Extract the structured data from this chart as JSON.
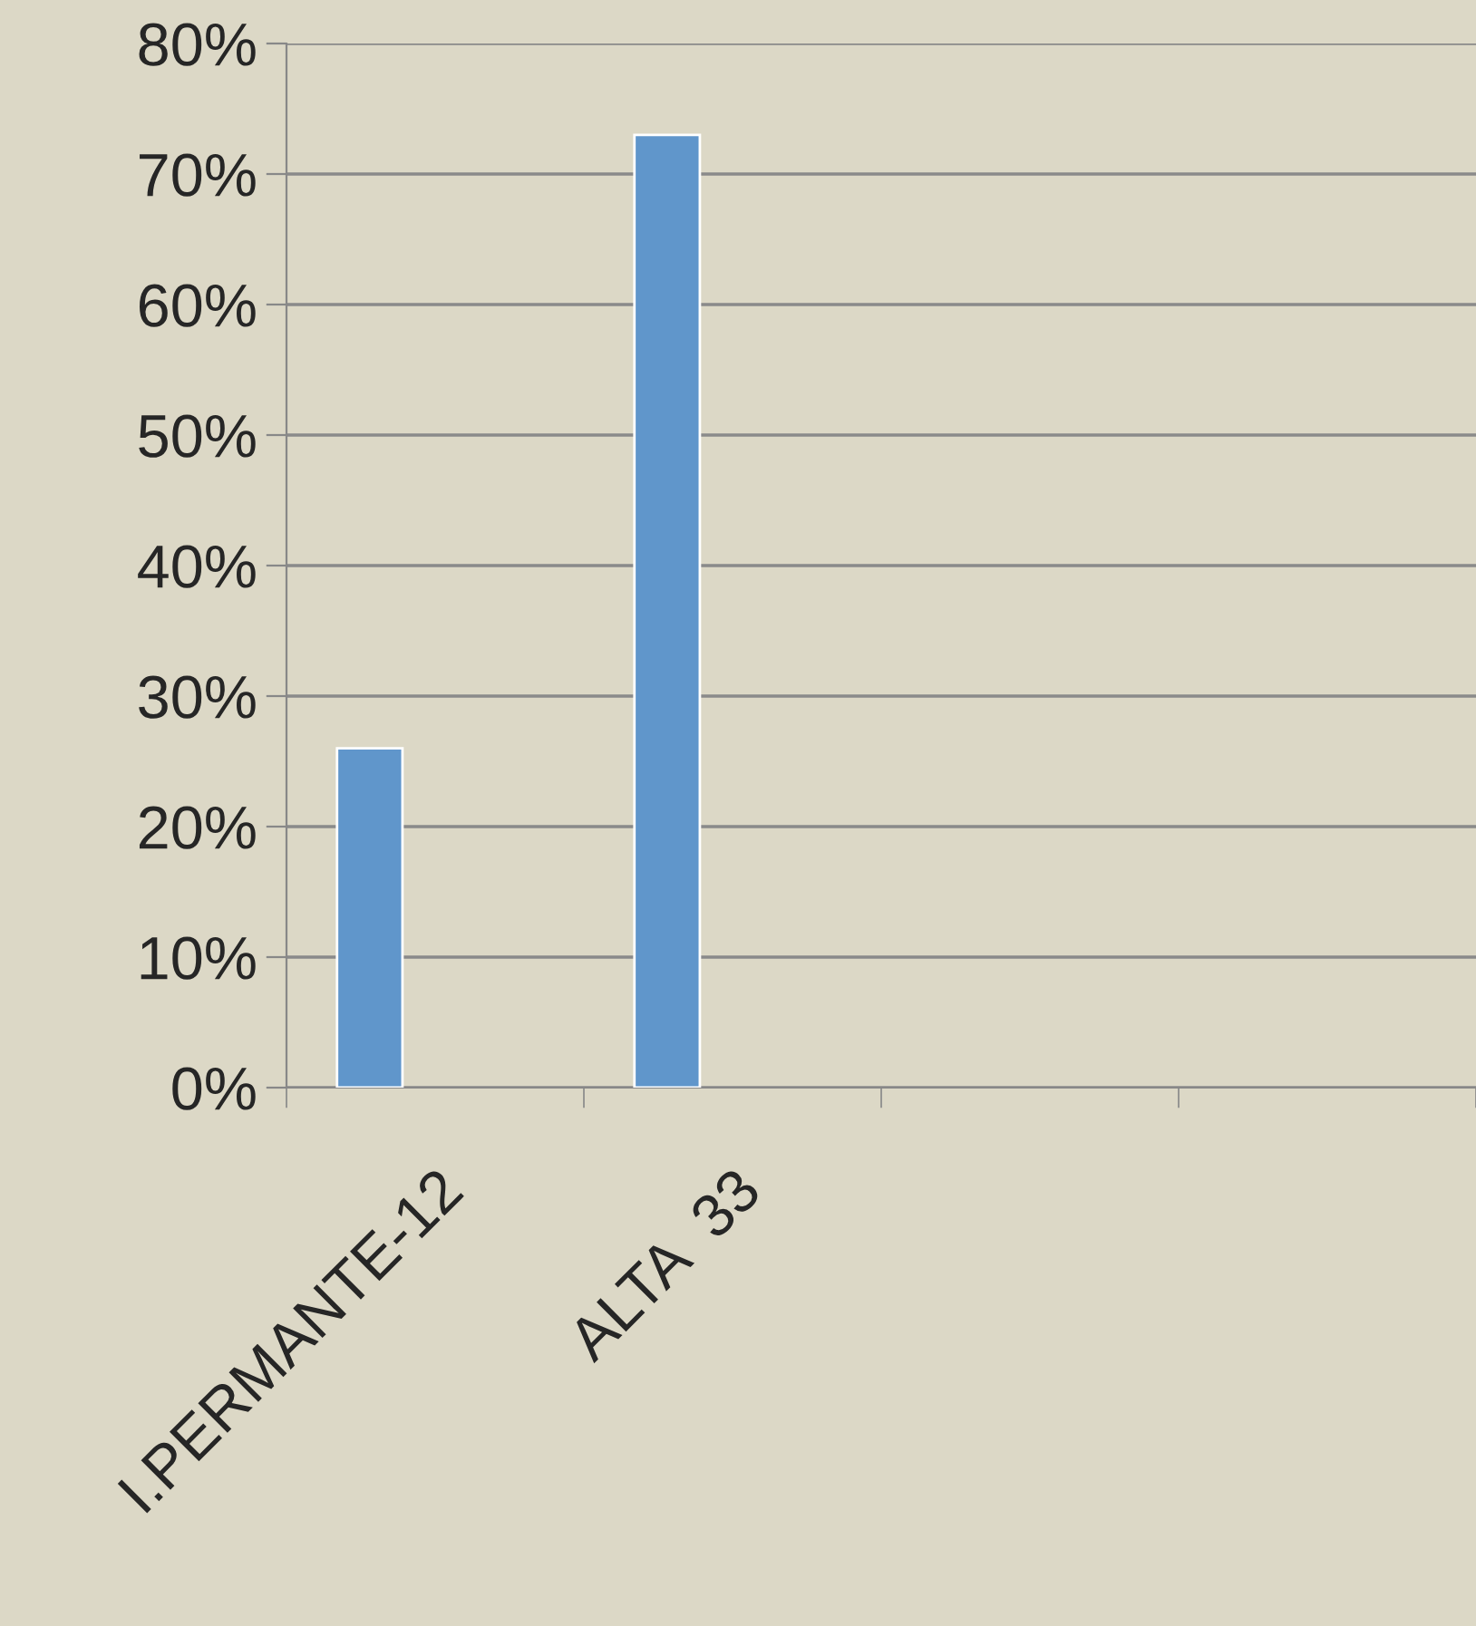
{
  "chart_data": {
    "type": "bar",
    "categories": [
      "I.PERMANTE-12",
      "ALTA  33",
      null,
      null
    ],
    "values": [
      26,
      73,
      null,
      null
    ],
    "color": "#6096cb",
    "ylim": [
      0,
      80
    ],
    "yticks": [
      {
        "value": 0,
        "label": "0%"
      },
      {
        "value": 10,
        "label": "10%"
      },
      {
        "value": 20,
        "label": "20%"
      },
      {
        "value": 30,
        "label": "30%"
      },
      {
        "value": 40,
        "label": "40%"
      },
      {
        "value": 50,
        "label": "50%"
      },
      {
        "value": 60,
        "label": "60%"
      },
      {
        "value": 70,
        "label": "70%"
      },
      {
        "value": 80,
        "label": "80%"
      }
    ],
    "grid": "y",
    "legend": false
  }
}
